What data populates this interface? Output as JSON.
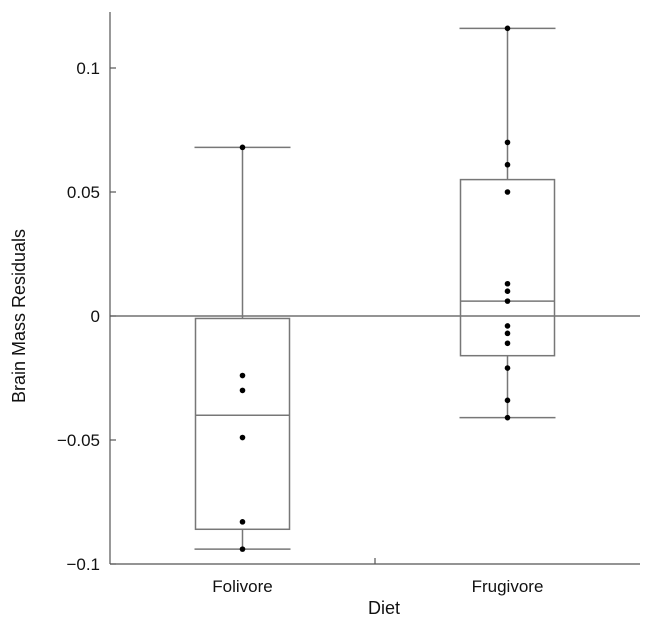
{
  "chart_data": {
    "type": "box",
    "xlabel": "Diet",
    "ylabel": "Brain Mass Residuals",
    "ylim": [
      -0.1,
      0.12
    ],
    "yticks": [
      0.1,
      0.05,
      0,
      -0.05,
      -0.1
    ],
    "ytick_labels": [
      "0.1",
      "0.05",
      "0",
      "−0.05",
      "−0.1"
    ],
    "reference_line": 0,
    "grid": false,
    "categories": [
      "Folivore",
      "Frugivore"
    ],
    "boxes": [
      {
        "category": "Folivore",
        "whisker_low": -0.094,
        "q1": -0.086,
        "median": -0.04,
        "q3": -0.001,
        "whisker_high": 0.068,
        "points": [
          -0.024,
          -0.03,
          -0.049,
          -0.083,
          -0.094,
          0.068
        ]
      },
      {
        "category": "Frugivore",
        "whisker_low": -0.041,
        "q1": -0.016,
        "median": 0.006,
        "q3": 0.055,
        "whisker_high": 0.116,
        "points": [
          0.116,
          0.07,
          0.061,
          0.05,
          0.013,
          0.01,
          0.006,
          -0.004,
          -0.007,
          -0.011,
          -0.021,
          -0.034,
          -0.041
        ]
      }
    ],
    "colors": {
      "axis": "#555555",
      "box": "#777777",
      "point": "#000000",
      "text": "#111111"
    }
  }
}
